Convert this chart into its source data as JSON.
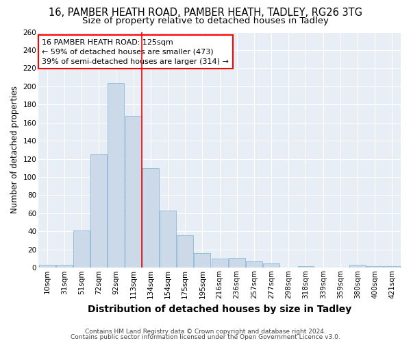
{
  "title": "16, PAMBER HEATH ROAD, PAMBER HEATH, TADLEY, RG26 3TG",
  "subtitle": "Size of property relative to detached houses in Tadley",
  "xlabel": "Distribution of detached houses by size in Tadley",
  "ylabel": "Number of detached properties",
  "bins": [
    "10sqm",
    "31sqm",
    "51sqm",
    "72sqm",
    "92sqm",
    "113sqm",
    "134sqm",
    "154sqm",
    "175sqm",
    "195sqm",
    "216sqm",
    "236sqm",
    "257sqm",
    "277sqm",
    "298sqm",
    "318sqm",
    "339sqm",
    "359sqm",
    "380sqm",
    "400sqm",
    "421sqm"
  ],
  "values": [
    3,
    3,
    41,
    125,
    204,
    167,
    110,
    63,
    36,
    16,
    10,
    11,
    7,
    5,
    0,
    2,
    0,
    0,
    3,
    2,
    2
  ],
  "bar_color": "#ccd9e8",
  "bar_edge_color": "#7bafd4",
  "property_line_x": 5.5,
  "property_line_color": "red",
  "annotation_title": "16 PAMBER HEATH ROAD: 125sqm",
  "annotation_line1": "← 59% of detached houses are smaller (473)",
  "annotation_line2": "39% of semi-detached houses are larger (314) →",
  "annotation_box_color": "red",
  "footer1": "Contains HM Land Registry data © Crown copyright and database right 2024.",
  "footer2": "Contains public sector information licensed under the Open Government Licence v3.0.",
  "ylim": [
    0,
    260
  ],
  "background_color": "#ffffff",
  "plot_bg_color": "#e8eef5",
  "grid_color": "#ffffff",
  "title_fontsize": 10.5,
  "subtitle_fontsize": 9.5,
  "xlabel_fontsize": 10,
  "ylabel_fontsize": 8.5,
  "tick_fontsize": 7.5,
  "annotation_fontsize": 8,
  "footer_fontsize": 6.5
}
